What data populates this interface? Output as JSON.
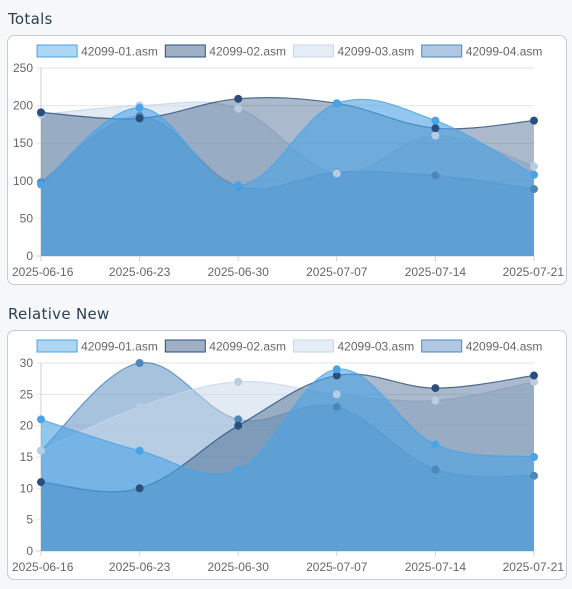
{
  "sections": [
    {
      "title": "Totals"
    },
    {
      "title": "Relative New"
    }
  ],
  "chart_data": [
    {
      "type": "area",
      "title": "Totals",
      "x": [
        "2025-06-16",
        "2025-06-23",
        "2025-06-30",
        "2025-07-07",
        "2025-07-14",
        "2025-07-21"
      ],
      "ylim": [
        0,
        250
      ],
      "yticks": [
        0,
        50,
        100,
        150,
        200,
        250
      ],
      "grid": true,
      "legend": "top",
      "series": [
        {
          "name": "42099-01.asm",
          "color": "#4aa3e6",
          "values": [
            95,
            197,
            94,
            203,
            180,
            108
          ]
        },
        {
          "name": "42099-02.asm",
          "color": "#2a4f7e",
          "values": [
            191,
            183,
            209,
            203,
            170,
            180
          ]
        },
        {
          "name": "42099-03.asm",
          "color": "#c5d7ea",
          "values": [
            188,
            200,
            196,
            110,
            160,
            119
          ]
        },
        {
          "name": "42099-04.asm",
          "color": "#4f86bc",
          "values": [
            98,
            186,
            93,
            111,
            107,
            89
          ]
        }
      ]
    },
    {
      "type": "area",
      "title": "Relative New",
      "x": [
        "2025-06-16",
        "2025-06-23",
        "2025-06-30",
        "2025-07-07",
        "2025-07-14",
        "2025-07-21"
      ],
      "ylim": [
        0,
        30
      ],
      "yticks": [
        0,
        5,
        10,
        15,
        20,
        25,
        30
      ],
      "grid": true,
      "legend": "top",
      "series": [
        {
          "name": "42099-01.asm",
          "color": "#4aa3e6",
          "values": [
            21,
            16,
            13,
            29,
            17,
            15
          ]
        },
        {
          "name": "42099-02.asm",
          "color": "#2a4f7e",
          "values": [
            11,
            10,
            20,
            28,
            26,
            28
          ]
        },
        {
          "name": "42099-03.asm",
          "color": "#c5d7ea",
          "values": [
            16,
            23,
            27,
            25,
            24,
            27
          ]
        },
        {
          "name": "42099-04.asm",
          "color": "#4f86bc",
          "values": [
            16,
            30,
            21,
            23,
            13,
            12
          ]
        }
      ]
    }
  ]
}
